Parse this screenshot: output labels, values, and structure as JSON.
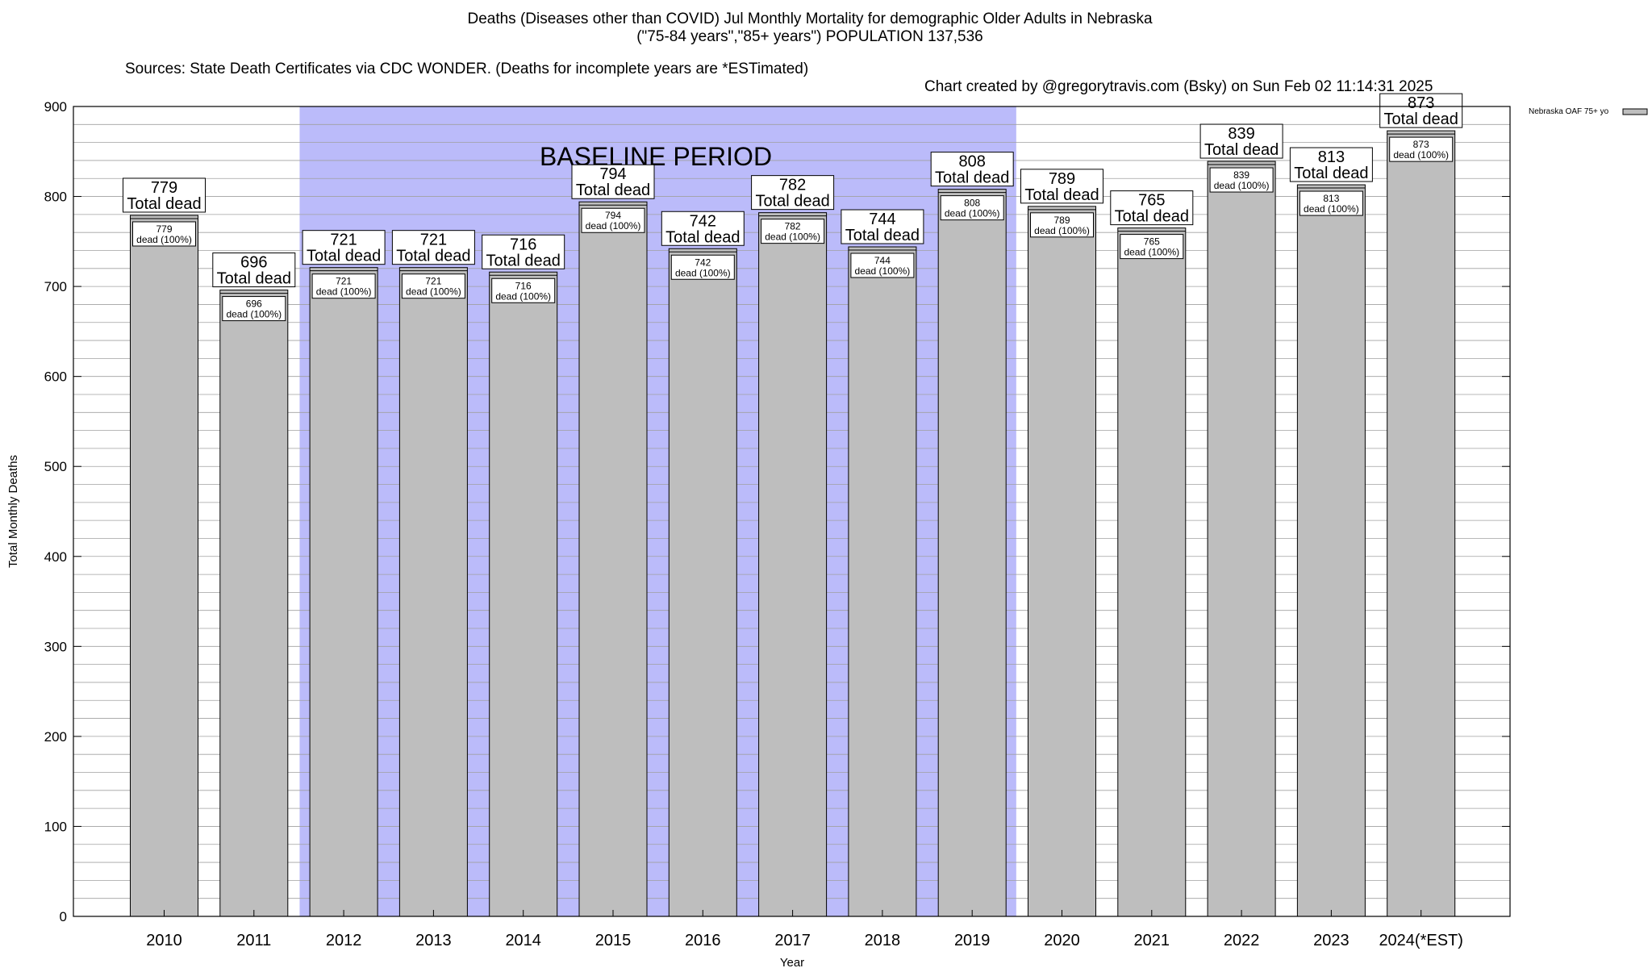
{
  "title_lines": [
    "Deaths (Diseases other than COVID) Jul Monthly Mortality for demographic Older Adults in Nebraska",
    "(\"75-84 years\",\"85+ years\") POPULATION 137,536"
  ],
  "sources_text": "Sources: State Death Certificates via CDC WONDER. (Deaths for incomplete years are *ESTimated)",
  "created_text": "Chart created by @gregorytravis.com (Bsky) on Sun Feb 02 11:14:31 2025",
  "chart_data": {
    "type": "bar",
    "xlabel": "Year",
    "ylabel": "Total Monthly Deaths",
    "ylim": [
      0,
      900
    ],
    "yticks": [
      0,
      100,
      200,
      300,
      400,
      500,
      600,
      700,
      800,
      900
    ],
    "categories": [
      "2010",
      "2011",
      "2012",
      "2013",
      "2014",
      "2015",
      "2016",
      "2017",
      "2018",
      "2019",
      "2020",
      "2021",
      "2022",
      "2023",
      "2024(*EST)"
    ],
    "series": [
      {
        "name": "Nebraska OAF 75+ yo",
        "values": [
          779,
          696,
          721,
          721,
          716,
          794,
          742,
          782,
          744,
          808,
          789,
          765,
          839,
          813,
          873
        ]
      }
    ],
    "total_label_suffix": "Total dead",
    "inner_label_suffix": "dead (100%)",
    "baseline": {
      "label": "BASELINE PERIOD",
      "from": "2012",
      "to": "2019"
    },
    "legend_position": "top-right",
    "grid": true,
    "colors": {
      "bar": "#bebebe",
      "baseline": "#bbbbfa",
      "grid": "#a0a0a0"
    }
  }
}
